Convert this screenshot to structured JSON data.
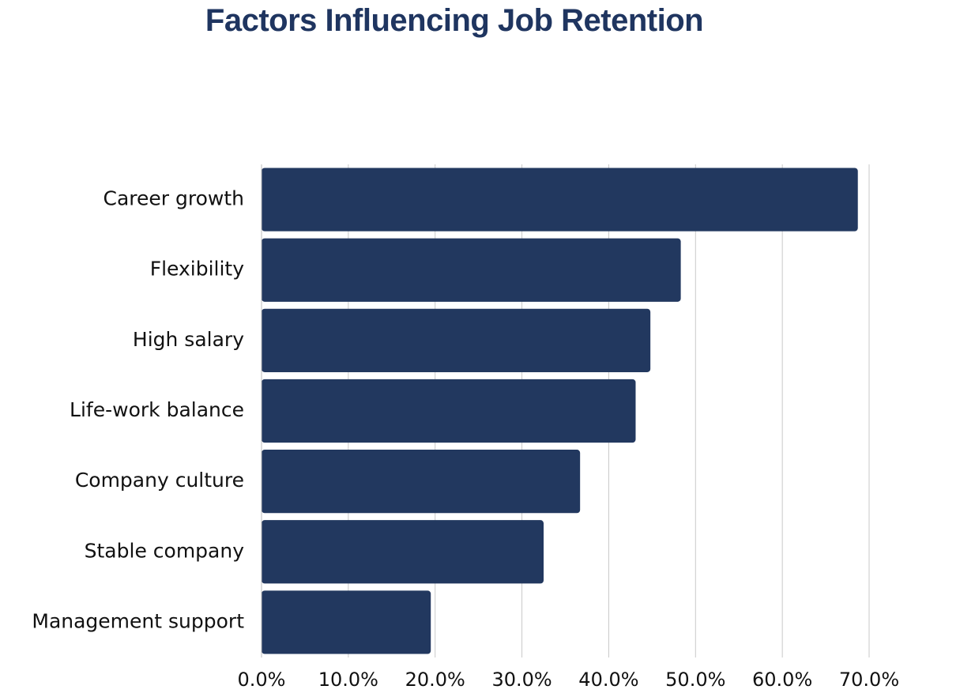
{
  "chart_data": {
    "type": "bar",
    "orientation": "horizontal",
    "title": "Factors Influencing Job Retention",
    "categories": [
      "Career growth",
      "Flexibility",
      "High salary",
      "Life-work balance",
      "Company culture",
      "Stable company",
      "Management support"
    ],
    "values": [
      68.7,
      48.3,
      44.8,
      43.1,
      36.7,
      32.5,
      19.5
    ],
    "xlim": [
      0,
      70
    ],
    "x_ticks": [
      0,
      10,
      20,
      30,
      40,
      50,
      60,
      70
    ],
    "x_tick_labels": [
      "0.0%",
      "10.0%",
      "20.0%",
      "30.0%",
      "40.0%",
      "50.0%",
      "60.0%",
      "70.0%"
    ],
    "xlabel": "",
    "ylabel": "",
    "grid": "vertical",
    "legend": "none",
    "bar_color": "#22385f",
    "grid_color": "#c8c8c8"
  }
}
